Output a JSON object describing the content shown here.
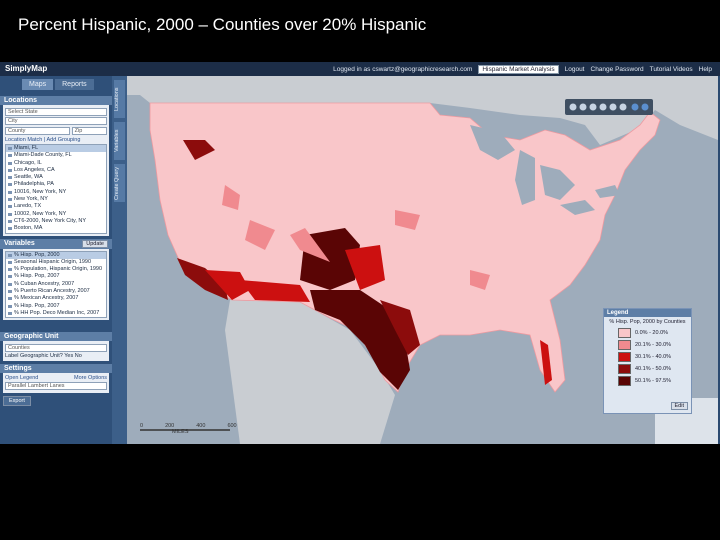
{
  "title": "Percent Hispanic, 2000 – Counties over 20% Hispanic",
  "app": {
    "logo": "SimplyMap",
    "tabs": [
      "Maps",
      "Reports"
    ],
    "side_tabs": [
      "Locations",
      "Variables",
      "Create Query"
    ],
    "user_bar": {
      "logged_in": "Logged in as cswartz@geographicresearch.com",
      "project": "Hispanic Market Analysis",
      "links": [
        "Logout",
        "Change Password",
        "Tutorial Videos",
        "Help"
      ]
    }
  },
  "locations": {
    "heading": "Locations",
    "state_placeholder": "Select State",
    "city_placeholder": "City",
    "county_placeholder": "County",
    "zip_placeholder": "Zip",
    "actions": "Location Match | Add Grouping",
    "items": [
      "Miami, FL",
      "Miami-Dade County, FL",
      "Chicago, IL",
      "Los Angeles, CA",
      "Seattle, WA",
      "Philadelphia, PA",
      "10016, New York, NY",
      "New York, NY",
      "Laredo, TX",
      "10002, New York, NY",
      "CT6-2000, New York City, NY",
      "Boston, MA"
    ]
  },
  "variables": {
    "heading": "Variables",
    "button": "Update",
    "items": [
      "% Hisp. Pop, 2000",
      "Seasonal Hispanic Origin, 1990",
      "% Population, Hispanic Origin, 1990",
      "% Hisp. Pop, 2007",
      "% Cuban Ancestry, 2007",
      "% Puerto Rican Ancestry, 2007",
      "% Mexican Ancestry, 2007",
      "% Hisp. Pop, 2007",
      "% HH Pop. Deco Median Inc, 2007"
    ]
  },
  "geographic_unit": {
    "heading": "Geographic Unit",
    "value": "Counties",
    "label_question": "Label Geographic Unit?",
    "yes": "Yes",
    "no": "No"
  },
  "settings": {
    "heading": "Settings",
    "open_legend": "Open Legend",
    "more_options": "More Options",
    "projection": "Parallel Lambert Lanes",
    "export": "Export"
  },
  "legend": {
    "heading": "Legend",
    "subtitle": "% Hisp. Pop, 2000 by Counties",
    "entries": [
      {
        "label": "0.0% - 20.0%",
        "color": "#f9c6c9"
      },
      {
        "label": "20.1% - 30.0%",
        "color": "#f08a8f"
      },
      {
        "label": "30.1% - 40.0%",
        "color": "#cc1010"
      },
      {
        "label": "40.1% - 50.0%",
        "color": "#8c0c0c"
      },
      {
        "label": "50.1% - 97.5%",
        "color": "#5a0505"
      }
    ],
    "edit": "Edit"
  },
  "scale_bar": {
    "labels": [
      "0",
      "200",
      "400",
      "600"
    ],
    "unit": "MILES"
  }
}
